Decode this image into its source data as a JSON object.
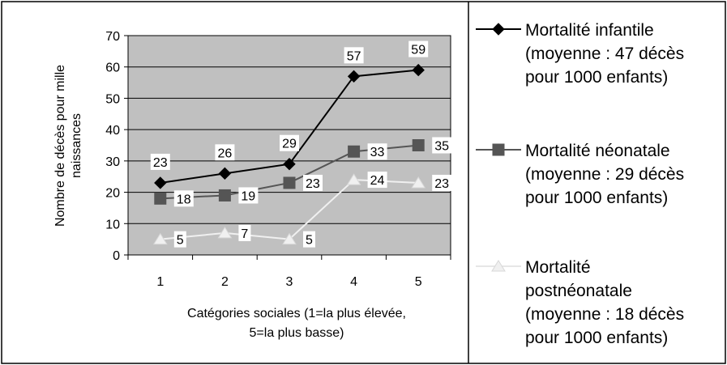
{
  "chart_data": {
    "type": "line",
    "categories": [
      "1",
      "2",
      "3",
      "4",
      "5"
    ],
    "xlabel_lines": [
      "Catégories sociales (1=la plus élevée,",
      "5=la plus basse)"
    ],
    "ylabel_lines": [
      "Nombre de décès pour mille",
      "naissances"
    ],
    "ylim": [
      0,
      70
    ],
    "yticks": [
      "0",
      "10",
      "20",
      "30",
      "40",
      "50",
      "60",
      "70"
    ],
    "grid": true,
    "legend_position": "right",
    "plot_background": "#c0c0c0",
    "series": [
      {
        "name_lines": [
          "Mortalité infantile",
          "(moyenne : 47 décès",
          "pour 1000 enfants)"
        ],
        "values": [
          23,
          26,
          29,
          57,
          59
        ],
        "labels": [
          "23",
          "26",
          "29",
          "57",
          "59"
        ],
        "color": "#000000",
        "marker": "diamond"
      },
      {
        "name_lines": [
          "Mortalité néonatale",
          "(moyenne : 29 décès",
          "pour 1000 enfants)"
        ],
        "values": [
          18,
          19,
          23,
          33,
          35
        ],
        "labels": [
          "18",
          "19",
          "23",
          "33",
          "35"
        ],
        "color": "#555555",
        "marker": "square"
      },
      {
        "name_lines": [
          "Mortalité",
          "postnéonatale",
          "(moyenne : 18 décès",
          "pour 1000 enfants)"
        ],
        "values": [
          5,
          7,
          5,
          24,
          23
        ],
        "labels": [
          "5",
          "7",
          "5",
          "24",
          "23"
        ],
        "color": "#f0f0f0",
        "marker": "triangle"
      }
    ]
  }
}
